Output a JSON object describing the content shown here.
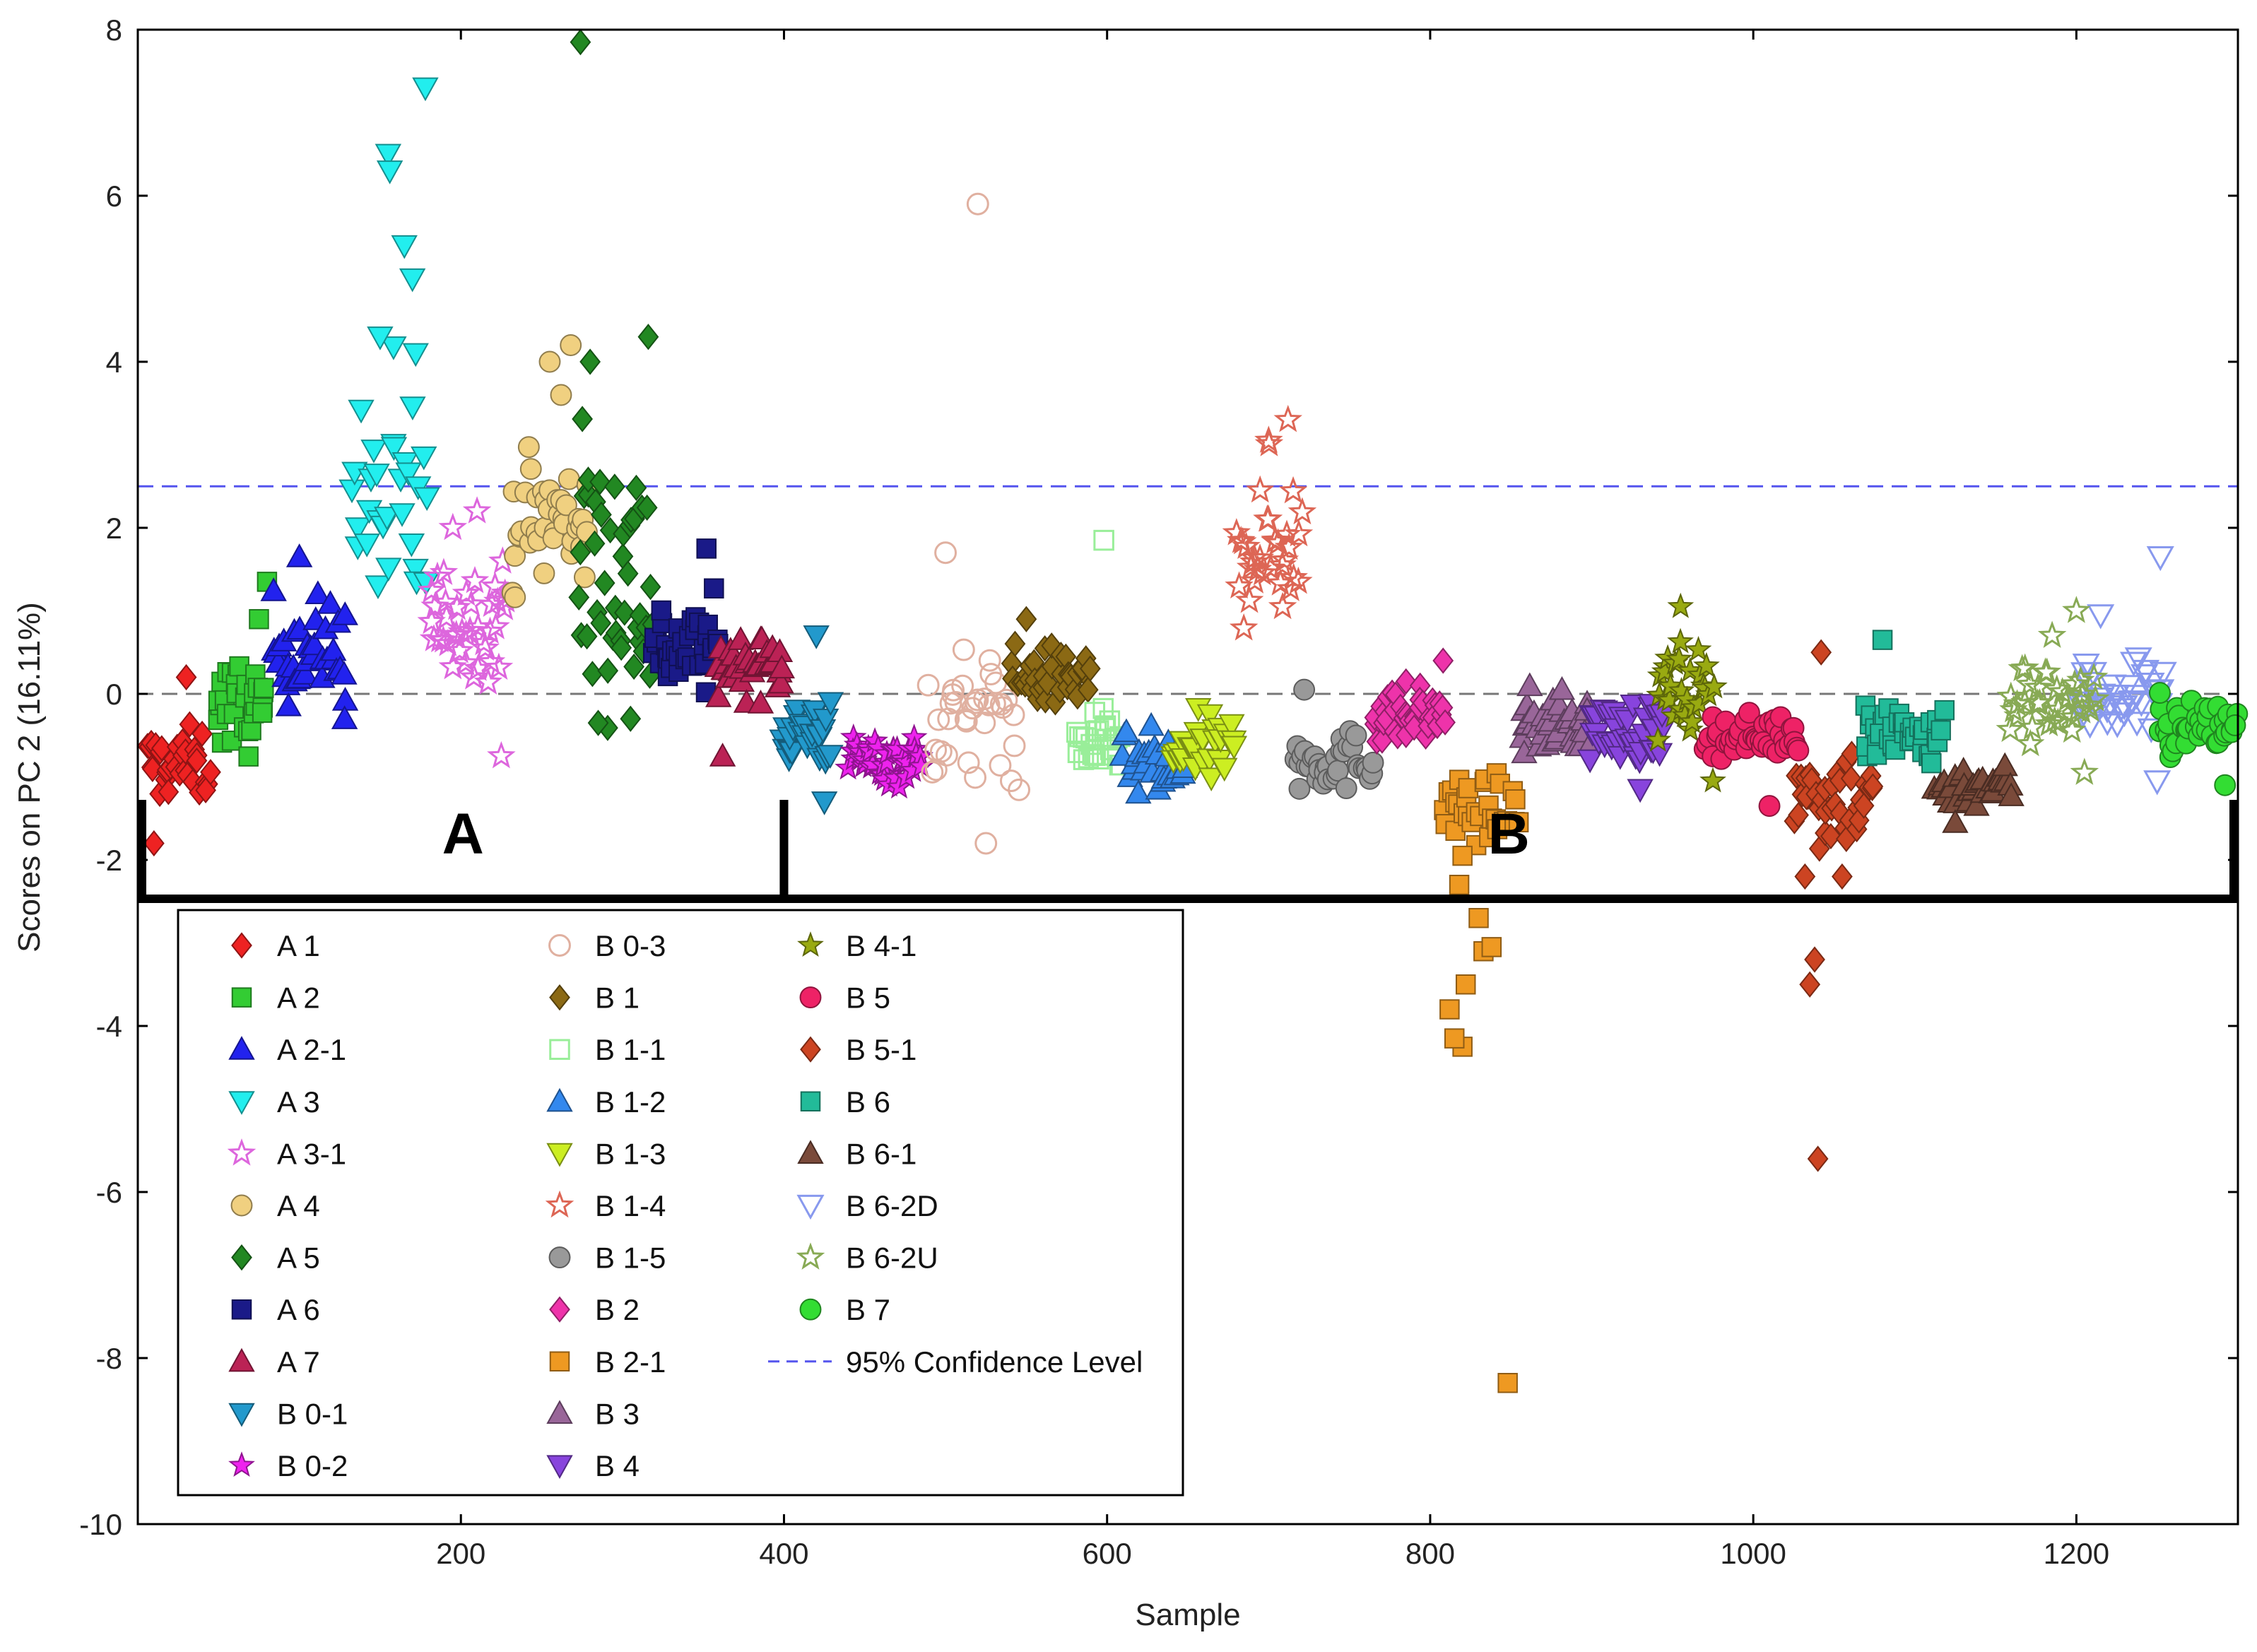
{
  "chart_data": {
    "type": "scatter",
    "title": "",
    "xlabel": "Sample",
    "ylabel": "Scores on PC 2 (16.11%)",
    "xlim": [
      0,
      1300
    ],
    "ylim": [
      -10,
      8
    ],
    "xticks": [
      200,
      400,
      600,
      800,
      1000,
      1200
    ],
    "yticks": [
      -10,
      -8,
      -6,
      -4,
      -2,
      0,
      2,
      4,
      6,
      8
    ],
    "grid": false,
    "reference_lines": [
      {
        "name": "95% Confidence Level",
        "y": 2.5,
        "color": "#5555ee",
        "style": "dashed"
      },
      {
        "name": "zero",
        "y": 0,
        "color": "#777777",
        "style": "dashed"
      }
    ],
    "group_brackets": [
      {
        "label": "A",
        "x_start": 0,
        "x_end": 400
      },
      {
        "label": "B",
        "x_start": 400,
        "x_end": 1300
      }
    ],
    "legend_position": "lower-left",
    "legend_extra": "95% Confidence Level",
    "series": [
      {
        "name": "A 1",
        "marker": "diamond",
        "color": "#ee2222",
        "filled": true,
        "x_range": [
          5,
          45
        ],
        "y_center": -0.85,
        "y_spread": 0.35,
        "n": 34,
        "outliers": [
          [
            10,
            -1.8
          ],
          [
            30,
            0.2
          ]
        ]
      },
      {
        "name": "A 2",
        "marker": "square",
        "color": "#33cc33",
        "filled": true,
        "x_range": [
          48,
          80
        ],
        "y_center": -0.15,
        "y_spread": 0.45,
        "n": 30,
        "outliers": [
          [
            80,
            1.35
          ],
          [
            75,
            0.9
          ]
        ]
      },
      {
        "name": "A 2-1",
        "marker": "triangle-up",
        "color": "#2222ee",
        "filled": true,
        "x_range": [
          82,
          130
        ],
        "y_center": 0.55,
        "y_spread": 0.5,
        "n": 38,
        "outliers": [
          [
            100,
            1.65
          ],
          [
            128,
            -0.3
          ]
        ]
      },
      {
        "name": "A 3",
        "marker": "triangle-down",
        "color": "#22eeee",
        "filled": true,
        "x_range": [
          132,
          180
        ],
        "y_center": 2.2,
        "y_spread": 1.4,
        "n": 30,
        "outliers": [
          [
            178,
            7.3
          ],
          [
            155,
            6.5
          ],
          [
            156,
            6.3
          ],
          [
            165,
            5.4
          ],
          [
            170,
            5.0
          ],
          [
            150,
            4.3
          ],
          [
            172,
            4.1
          ]
        ]
      },
      {
        "name": "A 3-1",
        "marker": "star",
        "color": "#dd66dd",
        "filled": false,
        "x_range": [
          180,
          230
        ],
        "y_center": 0.9,
        "y_spread": 0.55,
        "n": 40,
        "outliers": [
          [
            225,
            -0.75
          ],
          [
            210,
            2.2
          ],
          [
            195,
            2.0
          ]
        ]
      },
      {
        "name": "A 4",
        "marker": "circle",
        "color": "#f0d080",
        "filled": true,
        "x_range": [
          230,
          280
        ],
        "y_center": 2.1,
        "y_spread": 0.7,
        "n": 40,
        "outliers": [
          [
            268,
            4.2
          ],
          [
            255,
            4.0
          ],
          [
            262,
            3.6
          ]
        ]
      },
      {
        "name": "A 5",
        "marker": "diamond",
        "color": "#228822",
        "filled": true,
        "x_range": [
          272,
          320
        ],
        "y_center": 1.5,
        "y_spread": 1.4,
        "n": 44,
        "outliers": [
          [
            274,
            7.85
          ],
          [
            316,
            4.3
          ],
          [
            280,
            4.0
          ],
          [
            285,
            -0.35
          ],
          [
            305,
            -0.3
          ]
        ]
      },
      {
        "name": "A 6",
        "marker": "square",
        "color": "#1a1a88",
        "filled": true,
        "x_range": [
          318,
          360
        ],
        "y_center": 0.55,
        "y_spread": 0.45,
        "n": 36,
        "outliers": [
          [
            352,
            1.75
          ]
        ]
      },
      {
        "name": "A 7",
        "marker": "triangle-up",
        "color": "#bb2255",
        "filled": true,
        "x_range": [
          358,
          400
        ],
        "y_center": 0.35,
        "y_spread": 0.3,
        "n": 36,
        "outliers": [
          [
            362,
            -0.75
          ]
        ]
      },
      {
        "name": "B 0-1",
        "marker": "triangle-down",
        "color": "#2299cc",
        "filled": true,
        "x_range": [
          398,
          430
        ],
        "y_center": -0.45,
        "y_spread": 0.35,
        "n": 30,
        "outliers": [
          [
            420,
            0.7
          ],
          [
            425,
            -1.3
          ]
        ]
      },
      {
        "name": "B 0-2",
        "marker": "star",
        "color": "#ee22ee",
        "filled": true,
        "x_range": [
          440,
          485
        ],
        "y_center": -0.8,
        "y_spread": 0.25,
        "n": 40,
        "outliers": []
      },
      {
        "name": "B 0-3",
        "marker": "circle",
        "color": "#e0b0a0",
        "filled": false,
        "x_range": [
          490,
          545
        ],
        "y_center": -0.3,
        "y_spread": 0.7,
        "n": 36,
        "outliers": [
          [
            520,
            5.9
          ],
          [
            500,
            1.7
          ],
          [
            525,
            -1.8
          ]
        ]
      },
      {
        "name": "B 1",
        "marker": "diamond",
        "color": "#8b6914",
        "filled": true,
        "x_range": [
          540,
          590
        ],
        "y_center": 0.2,
        "y_spread": 0.3,
        "n": 40,
        "outliers": [
          [
            550,
            0.9
          ]
        ]
      },
      {
        "name": "B 1-1",
        "marker": "square",
        "color": "#99ee99",
        "filled": false,
        "x_range": [
          580,
          610
        ],
        "y_center": -0.6,
        "y_spread": 0.3,
        "n": 26,
        "outliers": [
          [
            598,
            1.85
          ]
        ]
      },
      {
        "name": "B 1-2",
        "marker": "triangle-up",
        "color": "#3388ee",
        "filled": true,
        "x_range": [
          610,
          650
        ],
        "y_center": -0.9,
        "y_spread": 0.35,
        "n": 32,
        "outliers": []
      },
      {
        "name": "B 1-3",
        "marker": "triangle-down",
        "color": "#ccee22",
        "filled": true,
        "x_range": [
          640,
          680
        ],
        "y_center": -0.7,
        "y_spread": 0.35,
        "n": 30,
        "outliers": []
      },
      {
        "name": "B 1-4",
        "marker": "star",
        "color": "#dd6655",
        "filled": false,
        "x_range": [
          680,
          720
        ],
        "y_center": 1.8,
        "y_spread": 0.8,
        "n": 34,
        "outliers": [
          [
            712,
            3.3
          ],
          [
            700,
            3.05
          ]
        ]
      },
      {
        "name": "B 1-5",
        "marker": "circle",
        "color": "#999999",
        "filled": true,
        "x_range": [
          715,
          765
        ],
        "y_center": -0.8,
        "y_spread": 0.3,
        "n": 38,
        "outliers": [
          [
            722,
            0.05
          ]
        ]
      },
      {
        "name": "B 2",
        "marker": "diamond",
        "color": "#ee33aa",
        "filled": true,
        "x_range": [
          765,
          810
        ],
        "y_center": -0.25,
        "y_spread": 0.3,
        "n": 40,
        "outliers": [
          [
            808,
            0.4
          ]
        ]
      },
      {
        "name": "B 2-1",
        "marker": "square",
        "color": "#ee9922",
        "filled": true,
        "x_range": [
          808,
          855
        ],
        "y_center": -1.4,
        "y_spread": 0.3,
        "n": 32,
        "outliers": [
          [
            848,
            -8.3
          ],
          [
            820,
            -4.25
          ],
          [
            815,
            -4.15
          ],
          [
            812,
            -3.8
          ],
          [
            822,
            -3.5
          ],
          [
            833,
            -3.1
          ],
          [
            838,
            -3.05
          ],
          [
            830,
            -2.7
          ],
          [
            818,
            -2.3
          ],
          [
            820,
            -1.95
          ]
        ]
      },
      {
        "name": "B 3",
        "marker": "triangle-up",
        "color": "#996699",
        "filled": true,
        "x_range": [
          855,
          900
        ],
        "y_center": -0.35,
        "y_spread": 0.3,
        "n": 42,
        "outliers": []
      },
      {
        "name": "B 4",
        "marker": "triangle-down",
        "color": "#8844dd",
        "filled": true,
        "x_range": [
          898,
          945
        ],
        "y_center": -0.45,
        "y_spread": 0.3,
        "n": 40,
        "outliers": [
          [
            930,
            -1.15
          ]
        ]
      },
      {
        "name": "B 4-1",
        "marker": "star",
        "color": "#99aa11",
        "filled": true,
        "x_range": [
          940,
          975
        ],
        "y_center": 0.0,
        "y_spread": 0.5,
        "n": 30,
        "outliers": [
          [
            955,
            1.05
          ],
          [
            975,
            -1.05
          ]
        ]
      },
      {
        "name": "B 5",
        "marker": "circle",
        "color": "#ee2266",
        "filled": true,
        "x_range": [
          970,
          1030
        ],
        "y_center": -0.5,
        "y_spread": 0.2,
        "n": 44,
        "outliers": [
          [
            1010,
            -1.35
          ]
        ]
      },
      {
        "name": "B 5-1",
        "marker": "diamond",
        "color": "#cc4422",
        "filled": true,
        "x_range": [
          1025,
          1075
        ],
        "y_center": -1.2,
        "y_spread": 0.55,
        "n": 40,
        "outliers": [
          [
            1040,
            -5.6
          ],
          [
            1038,
            -3.2
          ],
          [
            1035,
            -3.5
          ],
          [
            1032,
            -2.2
          ],
          [
            1055,
            -2.2
          ],
          [
            1042,
            0.5
          ]
        ]
      },
      {
        "name": "B 6",
        "marker": "square",
        "color": "#22bb99",
        "filled": true,
        "x_range": [
          1068,
          1118
        ],
        "y_center": -0.5,
        "y_spread": 0.35,
        "n": 40,
        "outliers": [
          [
            1080,
            0.65
          ]
        ]
      },
      {
        "name": "B 6-1",
        "marker": "triangle-up",
        "color": "#7a4a3a",
        "filled": true,
        "x_range": [
          1112,
          1160
        ],
        "y_center": -1.1,
        "y_spread": 0.2,
        "n": 36,
        "outliers": [
          [
            1125,
            -1.55
          ]
        ]
      },
      {
        "name": "B 6-2D",
        "marker": "triangle-down",
        "color": "#8899ee",
        "filled": false,
        "x_range": [
          1200,
          1255
        ],
        "y_center": 0.0,
        "y_spread": 0.45,
        "n": 38,
        "outliers": [
          [
            1252,
            1.65
          ],
          [
            1215,
            0.95
          ],
          [
            1250,
            -1.05
          ]
        ]
      },
      {
        "name": "B 6-2U",
        "marker": "star",
        "color": "#88aa55",
        "filled": false,
        "x_range": [
          1158,
          1212
        ],
        "y_center": -0.1,
        "y_spread": 0.4,
        "n": 36,
        "outliers": [
          [
            1200,
            1.0
          ],
          [
            1185,
            0.7
          ],
          [
            1205,
            -0.95
          ]
        ]
      },
      {
        "name": "B 7",
        "marker": "circle",
        "color": "#33dd33",
        "filled": true,
        "x_range": [
          1250,
          1300
        ],
        "y_center": -0.4,
        "y_spread": 0.3,
        "n": 40,
        "outliers": [
          [
            1292,
            -1.1
          ]
        ]
      }
    ]
  }
}
